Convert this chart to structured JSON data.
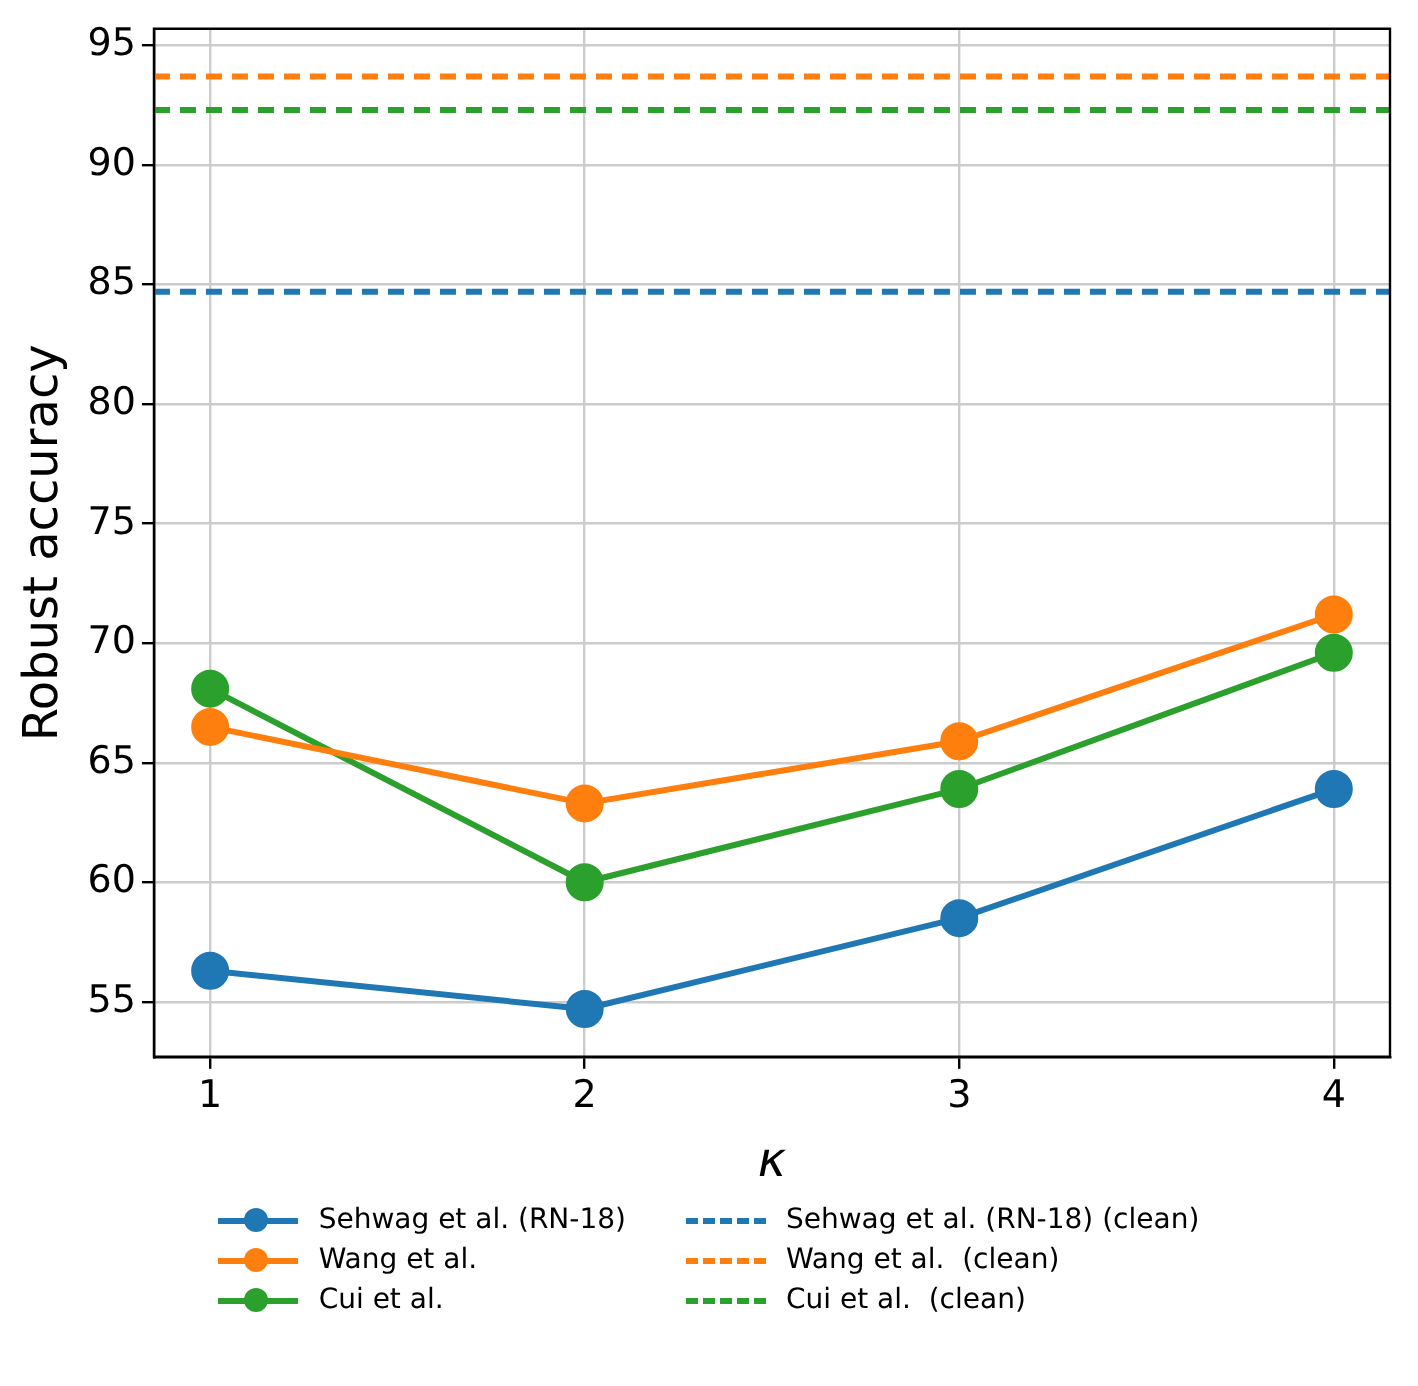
{
  "chart_data": {
    "type": "line",
    "xlabel": "κ",
    "ylabel": "Robust accuracy",
    "x": [
      1,
      2,
      3,
      4
    ],
    "series": [
      {
        "name": "Sehwag et al. (RN-18)",
        "color": "#1f77b4",
        "values": [
          56.3,
          54.7,
          58.5,
          63.9
        ]
      },
      {
        "name": "Wang et al.",
        "color": "#ff7f0e",
        "values": [
          66.5,
          63.3,
          65.9,
          71.2
        ]
      },
      {
        "name": "Cui et al.",
        "color": "#2ca02c",
        "values": [
          68.1,
          60.0,
          63.9,
          69.6
        ]
      }
    ],
    "ref_lines": [
      {
        "axis": "y",
        "value": 84.7,
        "label": "Sehwag et al. (RN-18) (clean)",
        "color": "#1f77b4",
        "line_style": "dashed"
      },
      {
        "axis": "y",
        "value": 93.7,
        "label": "Wang et al.  (clean)",
        "color": "#ff7f0e",
        "line_style": "dashed"
      },
      {
        "axis": "y",
        "value": 92.3,
        "label": "Cui et al.  (clean)",
        "color": "#2ca02c",
        "line_style": "dashed"
      }
    ],
    "xlim": [
      0.85,
      4.15
    ],
    "xticks": [
      1,
      2,
      3,
      4
    ],
    "ylim": [
      52.7,
      95.7
    ],
    "yticks": [
      55,
      60,
      65,
      70,
      75,
      80,
      85,
      90,
      95
    ],
    "grid": true,
    "legend": "bottom",
    "marker": "circle",
    "line_style": "solid"
  }
}
